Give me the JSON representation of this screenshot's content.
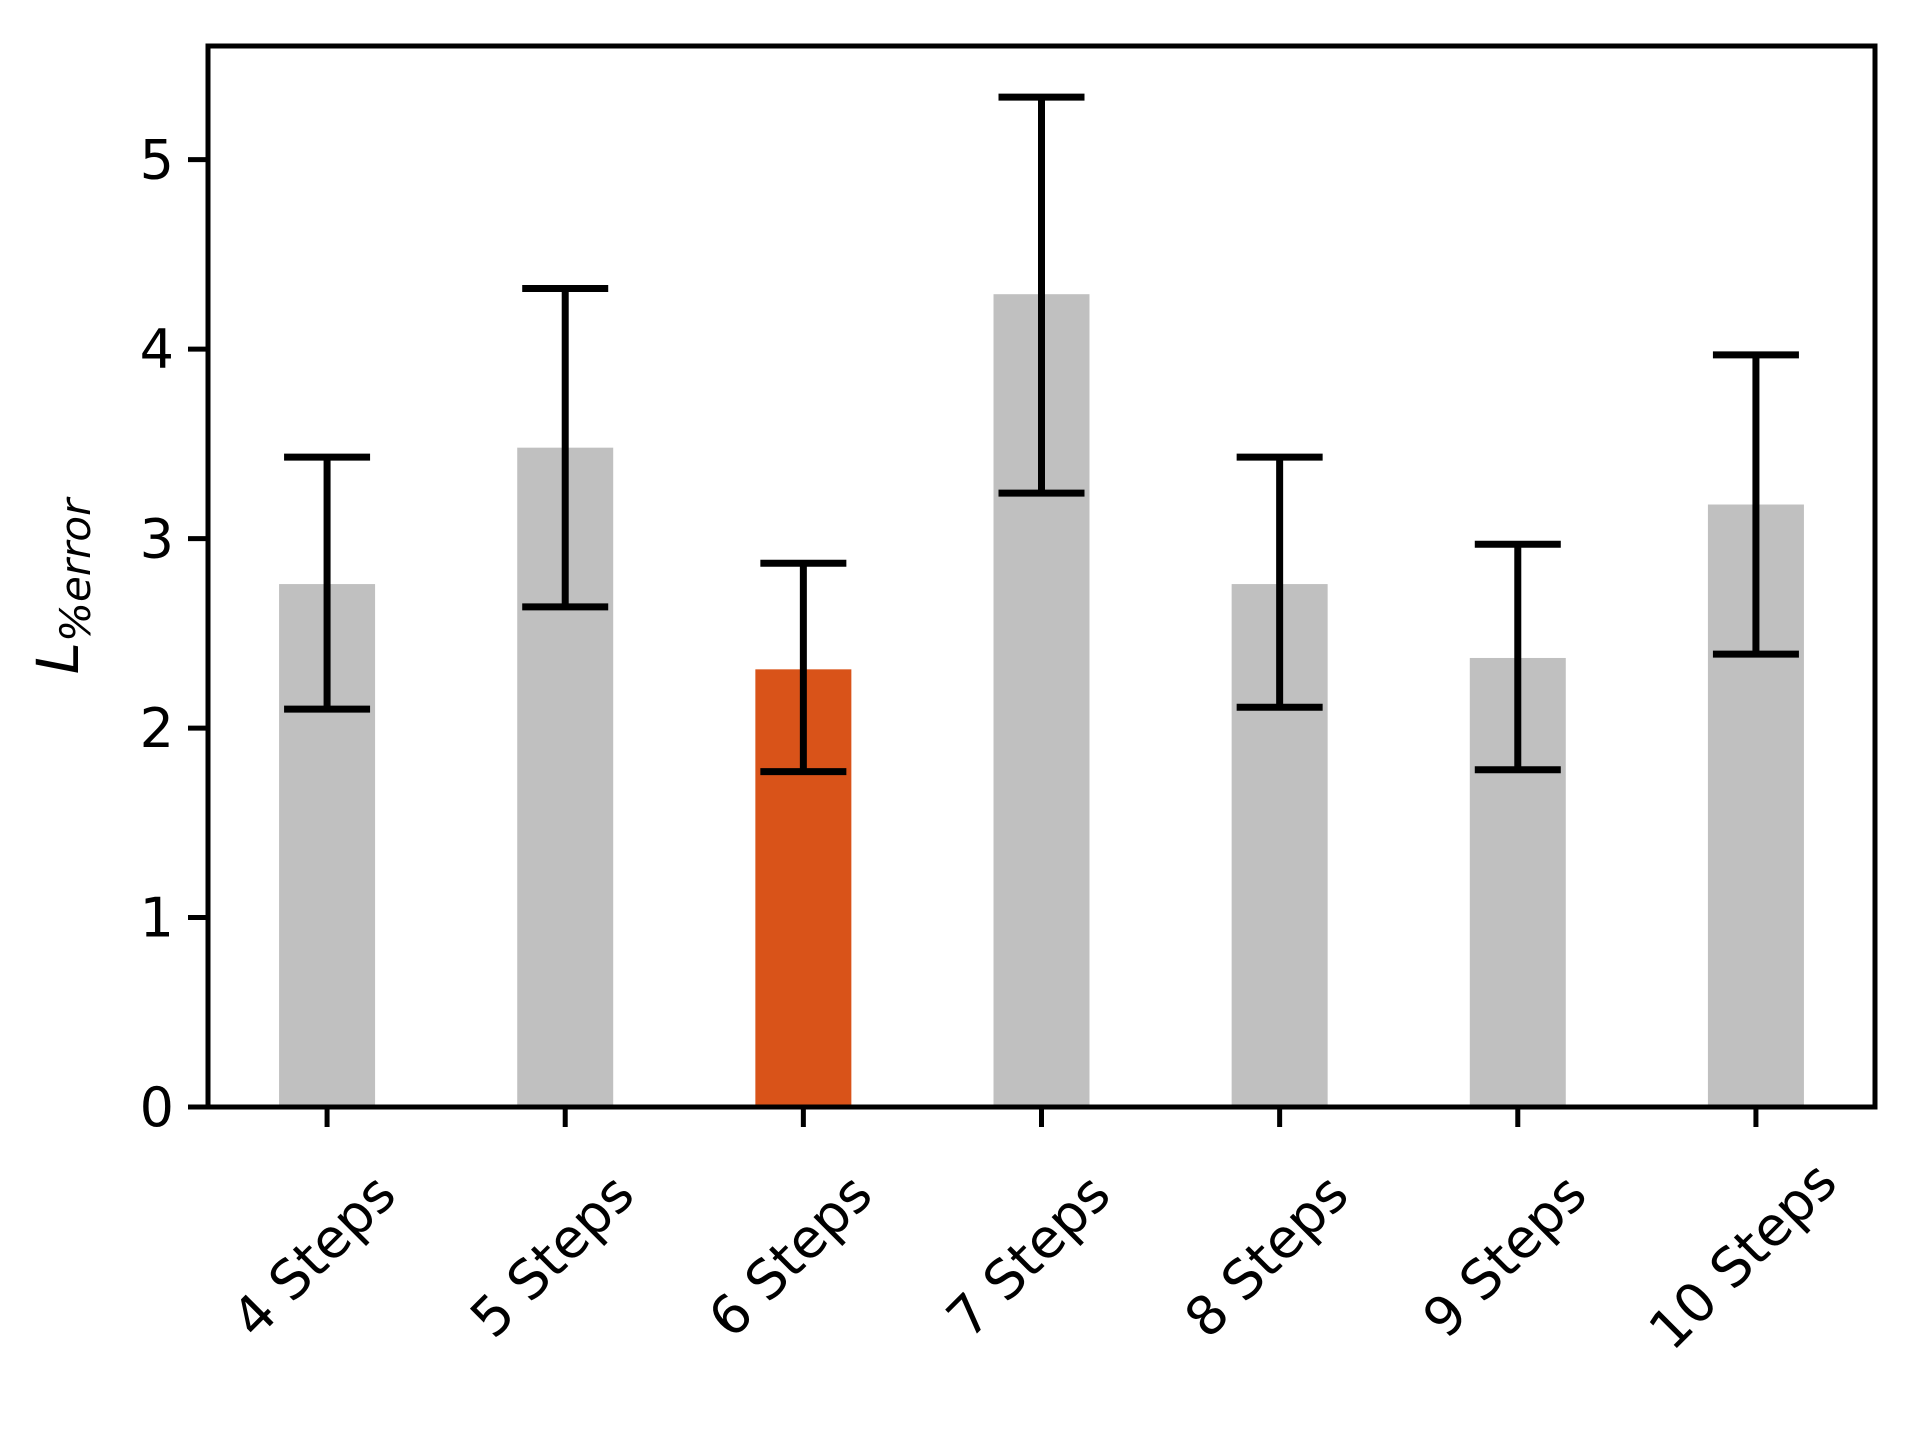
{
  "figure": {
    "background_color": "#ffffff"
  },
  "chart_data": {
    "type": "bar",
    "title": "",
    "categories": [
      "4 Steps",
      "5 Steps",
      "6 Steps",
      "7 Steps",
      "8 Steps",
      "9 Steps",
      "10 Steps"
    ],
    "values": [
      2.76,
      3.48,
      2.31,
      4.29,
      2.76,
      2.37,
      3.18
    ],
    "error_high": [
      3.43,
      4.32,
      2.87,
      5.33,
      3.43,
      2.97,
      3.97
    ],
    "error_low": [
      2.1,
      2.64,
      1.77,
      3.24,
      2.11,
      1.78,
      2.39
    ],
    "xlabel": "",
    "ylabel_base": "L",
    "ylabel_subscript": "%error",
    "yticks": [
      "0",
      "1",
      "2",
      "3",
      "4",
      "5"
    ],
    "ylim": [
      0,
      5.6
    ],
    "xtick_rotation_deg": 45,
    "grid": false,
    "legend": null,
    "bar_color_default": "#c0c0c0",
    "bar_color_highlight": "#d95319",
    "highlight_index": 2,
    "errorbar_color": "#000000",
    "axis_color": "#000000"
  }
}
